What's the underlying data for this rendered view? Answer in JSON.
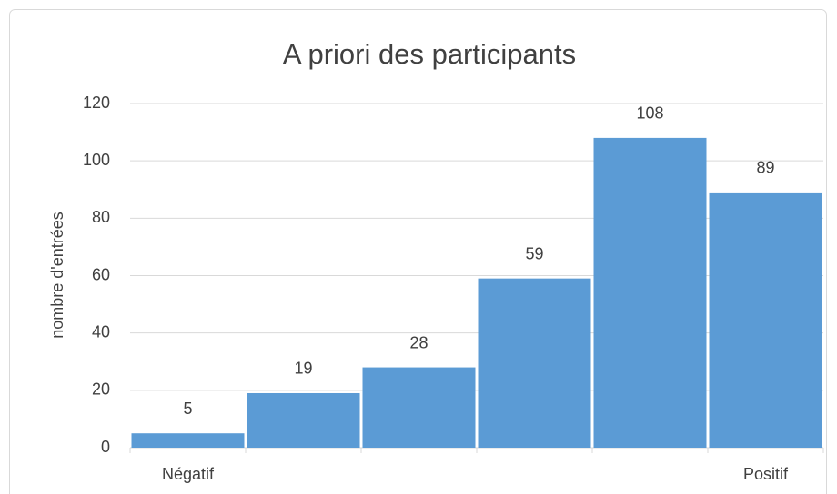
{
  "chart_data": {
    "type": "bar",
    "title": "A priori des participants",
    "y_label": "nombre d'entrées",
    "categories": [
      "Négatif",
      null,
      null,
      null,
      null,
      "Positif"
    ],
    "values": [
      5,
      19,
      28,
      59,
      108,
      89
    ],
    "color": "#5b9bd5",
    "ylim": [
      0,
      120
    ],
    "yticks": [
      0,
      20,
      40,
      60,
      80,
      100,
      120
    ],
    "grid": true
  }
}
